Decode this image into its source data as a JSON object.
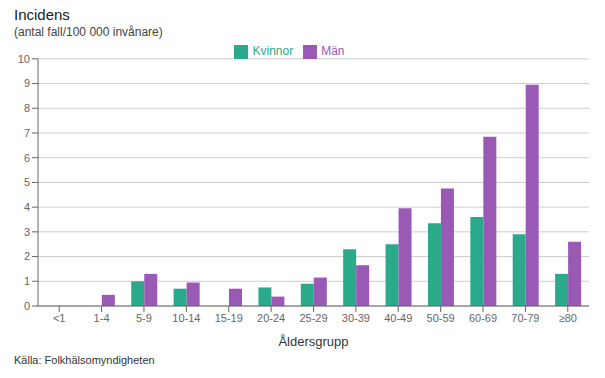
{
  "chart_data": {
    "type": "bar",
    "title": "Incidens",
    "subtitle": "(antal fall/100 000 invånare)",
    "xlabel": "Åldersgrupp",
    "categories": [
      "<1",
      "1-4",
      "5-9",
      "10-14",
      "15-19",
      "20-24",
      "25-29",
      "30-39",
      "40-49",
      "50-59",
      "60-69",
      "70-79",
      "≥80"
    ],
    "series": [
      {
        "name": "Kvinnor",
        "color": "#2aaa8a",
        "values": [
          0,
          0,
          1.0,
          0.7,
          0,
          0.75,
          0.9,
          2.3,
          2.5,
          3.35,
          3.6,
          2.9,
          1.3
        ]
      },
      {
        "name": "Män",
        "color": "#9b59b6",
        "values": [
          0,
          0.45,
          1.3,
          0.95,
          0.7,
          0.38,
          1.15,
          1.65,
          3.95,
          4.75,
          6.85,
          8.95,
          2.6
        ]
      }
    ],
    "ylim": [
      0,
      10
    ],
    "yticks": [
      0,
      1,
      2,
      3,
      4,
      5,
      6,
      7,
      8,
      9,
      10
    ],
    "grid": true,
    "legend": "top",
    "annotations": [
      "Källa: Folkhälsomyndigheten"
    ]
  }
}
